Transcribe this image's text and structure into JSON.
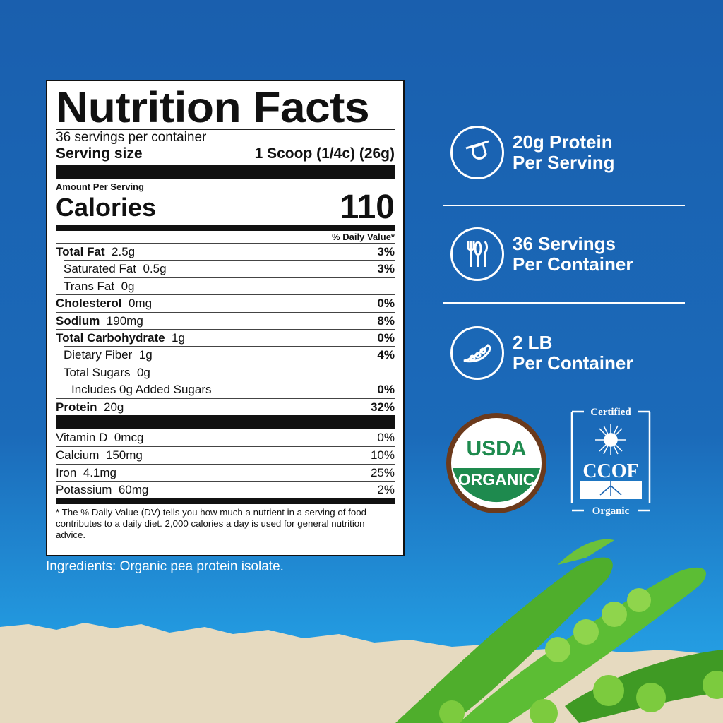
{
  "label": {
    "title": "Nutrition Facts",
    "servings_per_container": "36 servings per container",
    "serving_size_label": "Serving size",
    "serving_size_value": "1 Scoop (1/4c) (26g)",
    "amount_per_serving": "Amount Per Serving",
    "calories_label": "Calories",
    "calories_value": "110",
    "dv_header": "% Daily Value*",
    "nutrients": [
      {
        "name": "Total Fat",
        "amount": "2.5g",
        "dv": "3%",
        "bold": true,
        "indent": 0
      },
      {
        "name": "Saturated Fat",
        "amount": "0.5g",
        "dv": "3%",
        "bold": false,
        "indent": 1
      },
      {
        "name": "Trans Fat",
        "amount": "0g",
        "dv": "",
        "bold": false,
        "indent": 1
      },
      {
        "name": "Cholesterol",
        "amount": "0mg",
        "dv": "0%",
        "bold": true,
        "indent": 0
      },
      {
        "name": "Sodium",
        "amount": "190mg",
        "dv": "8%",
        "bold": true,
        "indent": 0
      },
      {
        "name": "Total Carbohydrate",
        "amount": "1g",
        "dv": "0%",
        "bold": true,
        "indent": 0
      },
      {
        "name": "Dietary Fiber",
        "amount": "1g",
        "dv": "4%",
        "bold": false,
        "indent": 1
      },
      {
        "name": "Total Sugars",
        "amount": "0g",
        "dv": "",
        "bold": false,
        "indent": 1
      },
      {
        "name": "Includes 0g Added Sugars",
        "amount": "",
        "dv": "0%",
        "bold": false,
        "indent": 2
      },
      {
        "name": "Protein",
        "amount": "20g",
        "dv": "32%",
        "bold": true,
        "indent": 0
      }
    ],
    "vitamins": [
      {
        "name": "Vitamin D",
        "amount": "0mcg",
        "dv": "0%"
      },
      {
        "name": "Calcium",
        "amount": "150mg",
        "dv": "10%"
      },
      {
        "name": "Iron",
        "amount": "4.1mg",
        "dv": "25%"
      },
      {
        "name": "Potassium",
        "amount": "60mg",
        "dv": "2%"
      }
    ],
    "footnote": "* The % Daily Value (DV) tells you how much a nutrient in a serving of food contributes to a daily diet. 2,000 calories a day is used for general nutrition advice."
  },
  "ingredients": "Ingredients: Organic pea protein isolate.",
  "features": [
    {
      "icon": "scoop-icon",
      "line1": "20g Protein",
      "line2": "Per Serving"
    },
    {
      "icon": "utensils-icon",
      "line1": "36 Servings",
      "line2": "Per Container"
    },
    {
      "icon": "pea-pod-icon",
      "line1": "2 LB",
      "line2": "Per Container"
    }
  ],
  "badges": {
    "usda_line1": "USDA",
    "usda_line2": "ORGANIC",
    "ccof_top": "Certified",
    "ccof_mid": "CCOF",
    "ccof_bottom": "Organic"
  },
  "colors": {
    "background": "#1b64b2",
    "usda_green": "#1e8a4e",
    "usda_brown": "#6b3a1c",
    "sand": "#e6dac0",
    "pea_green": "#4fae2c"
  }
}
